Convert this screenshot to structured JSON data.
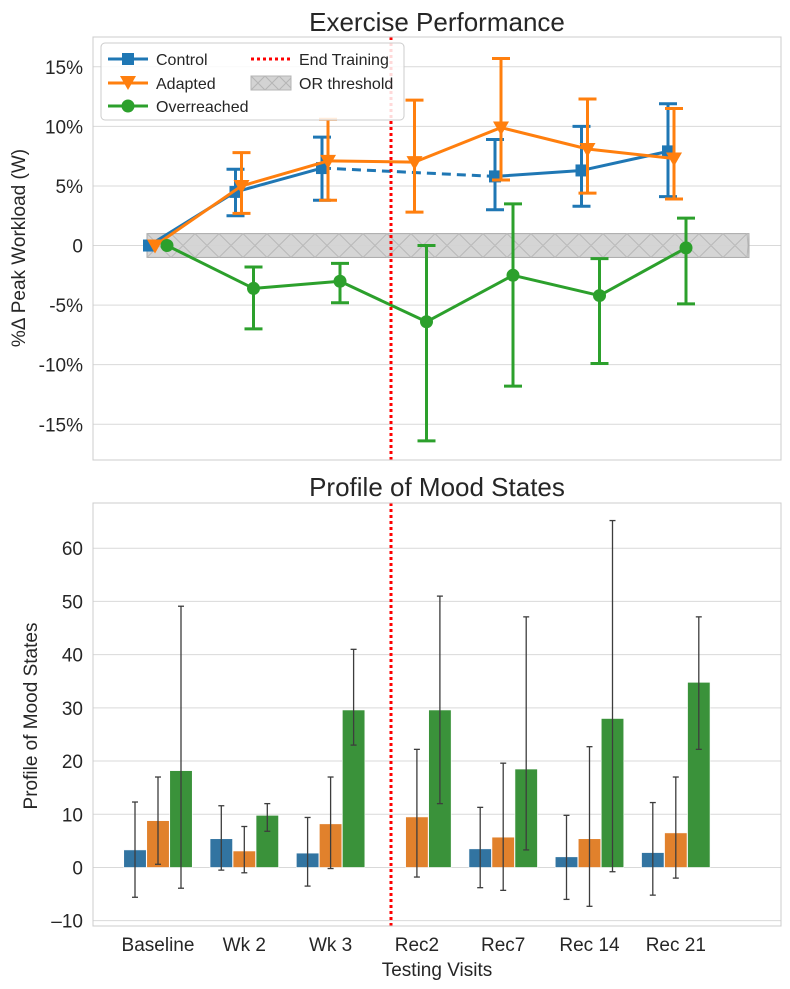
{
  "chart_data": [
    {
      "type": "line",
      "title": "Exercise Performance",
      "ylabel": "%Δ Peak Workload (W)",
      "xlabel": "",
      "ylim": [
        -18,
        17.5
      ],
      "yticks": [
        15,
        10,
        5,
        0,
        -5,
        -10,
        -15
      ],
      "ytick_labels": [
        "15%",
        "10%",
        "5%",
        "0",
        "-5%",
        "-10%",
        "-15%"
      ],
      "grid": true,
      "legend_position": "upper-left",
      "legend_columns": 2,
      "visits": [
        "Baseline",
        "Wk 2",
        "Wk 3",
        "Rec2",
        "Rec7",
        "Rec 14",
        "Rec 21"
      ],
      "series": [
        {
          "name": "Control",
          "color": "#1f77b4",
          "marker": "square",
          "values": [
            0.0,
            4.5,
            6.5,
            null,
            5.8,
            6.3,
            7.9
          ],
          "err_low": [
            0.0,
            2.5,
            3.8,
            null,
            3.0,
            3.3,
            4.1
          ],
          "err_high": [
            0.0,
            6.4,
            9.1,
            null,
            8.9,
            10.0,
            11.9
          ]
        },
        {
          "name": "Adapted",
          "color": "#ff7f0e",
          "marker": "triangle-down",
          "values": [
            0.0,
            5.0,
            7.1,
            7.0,
            9.9,
            8.1,
            7.3
          ],
          "err_low": [
            0.0,
            2.7,
            3.8,
            2.8,
            5.5,
            4.4,
            3.9
          ],
          "err_high": [
            0.0,
            7.8,
            10.6,
            12.2,
            15.7,
            12.3,
            11.5
          ]
        },
        {
          "name": "Overreached",
          "color": "#2ca02c",
          "marker": "circle",
          "values": [
            0.0,
            -3.6,
            -3.0,
            -6.4,
            -2.5,
            -4.2,
            -0.2
          ],
          "err_low": [
            0.0,
            -7.0,
            -4.8,
            -16.4,
            -11.8,
            -9.9,
            -4.9
          ],
          "err_high": [
            0.0,
            -1.8,
            -1.5,
            0.0,
            3.5,
            -1.1,
            2.3
          ]
        }
      ],
      "reference_lines": [
        {
          "name": "End Training",
          "color": "#ff0000",
          "style": "dotted",
          "between": [
            "Wk 3",
            "Rec2"
          ]
        }
      ],
      "bands": [
        {
          "name": "OR threshold",
          "y_range": [
            -1,
            1
          ],
          "color": "#d3d3d3",
          "hatch": "x"
        }
      ]
    },
    {
      "type": "bar",
      "title": "Profile of Mood States",
      "xlabel": "Testing Visits",
      "ylabel": "Profile of Mood States",
      "ylim": [
        -11,
        68.5
      ],
      "yticks": [
        -10,
        0,
        10,
        20,
        30,
        40,
        50,
        60
      ],
      "ytick_labels": [
        "–10",
        "0",
        "10",
        "20",
        "30",
        "40",
        "50",
        "60"
      ],
      "grid": true,
      "categories": [
        "Baseline",
        "Wk 2",
        "Wk 3",
        "Rec2",
        "Rec7",
        "Rec 14",
        "Rec 21"
      ],
      "series": [
        {
          "name": "Control",
          "color": "#3274a1",
          "values": [
            3.3,
            5.4,
            2.7,
            null,
            3.5,
            2.0,
            2.8
          ],
          "err_low": [
            -5.6,
            -0.5,
            -3.5,
            null,
            -3.8,
            -6.0,
            -5.2
          ],
          "err_high": [
            12.3,
            11.6,
            9.4,
            null,
            11.3,
            9.8,
            12.2
          ]
        },
        {
          "name": "Adapted",
          "color": "#e1812c",
          "values": [
            8.8,
            3.1,
            8.2,
            9.5,
            5.7,
            5.4,
            6.5
          ],
          "err_low": [
            0.6,
            -1.0,
            -0.2,
            -1.8,
            -4.3,
            -7.3,
            -2.0
          ],
          "err_high": [
            17.0,
            7.7,
            17.0,
            22.2,
            19.6,
            22.7,
            17.0
          ],
          "label": ""
        },
        {
          "name": "Overreached",
          "color": "#3a923a",
          "values": [
            18.2,
            9.8,
            29.6,
            29.6,
            18.5,
            28.0,
            34.8
          ],
          "err_low": [
            -3.9,
            6.8,
            23.0,
            12.0,
            3.3,
            -0.8,
            22.2
          ],
          "err_high": [
            49.1,
            12.0,
            41.0,
            51.0,
            47.1,
            65.2,
            47.1
          ]
        }
      ],
      "reference_lines": [
        {
          "name": "End Training",
          "color": "#ff0000",
          "style": "dotted",
          "between": [
            "Wk 3",
            "Rec2"
          ]
        }
      ]
    }
  ]
}
